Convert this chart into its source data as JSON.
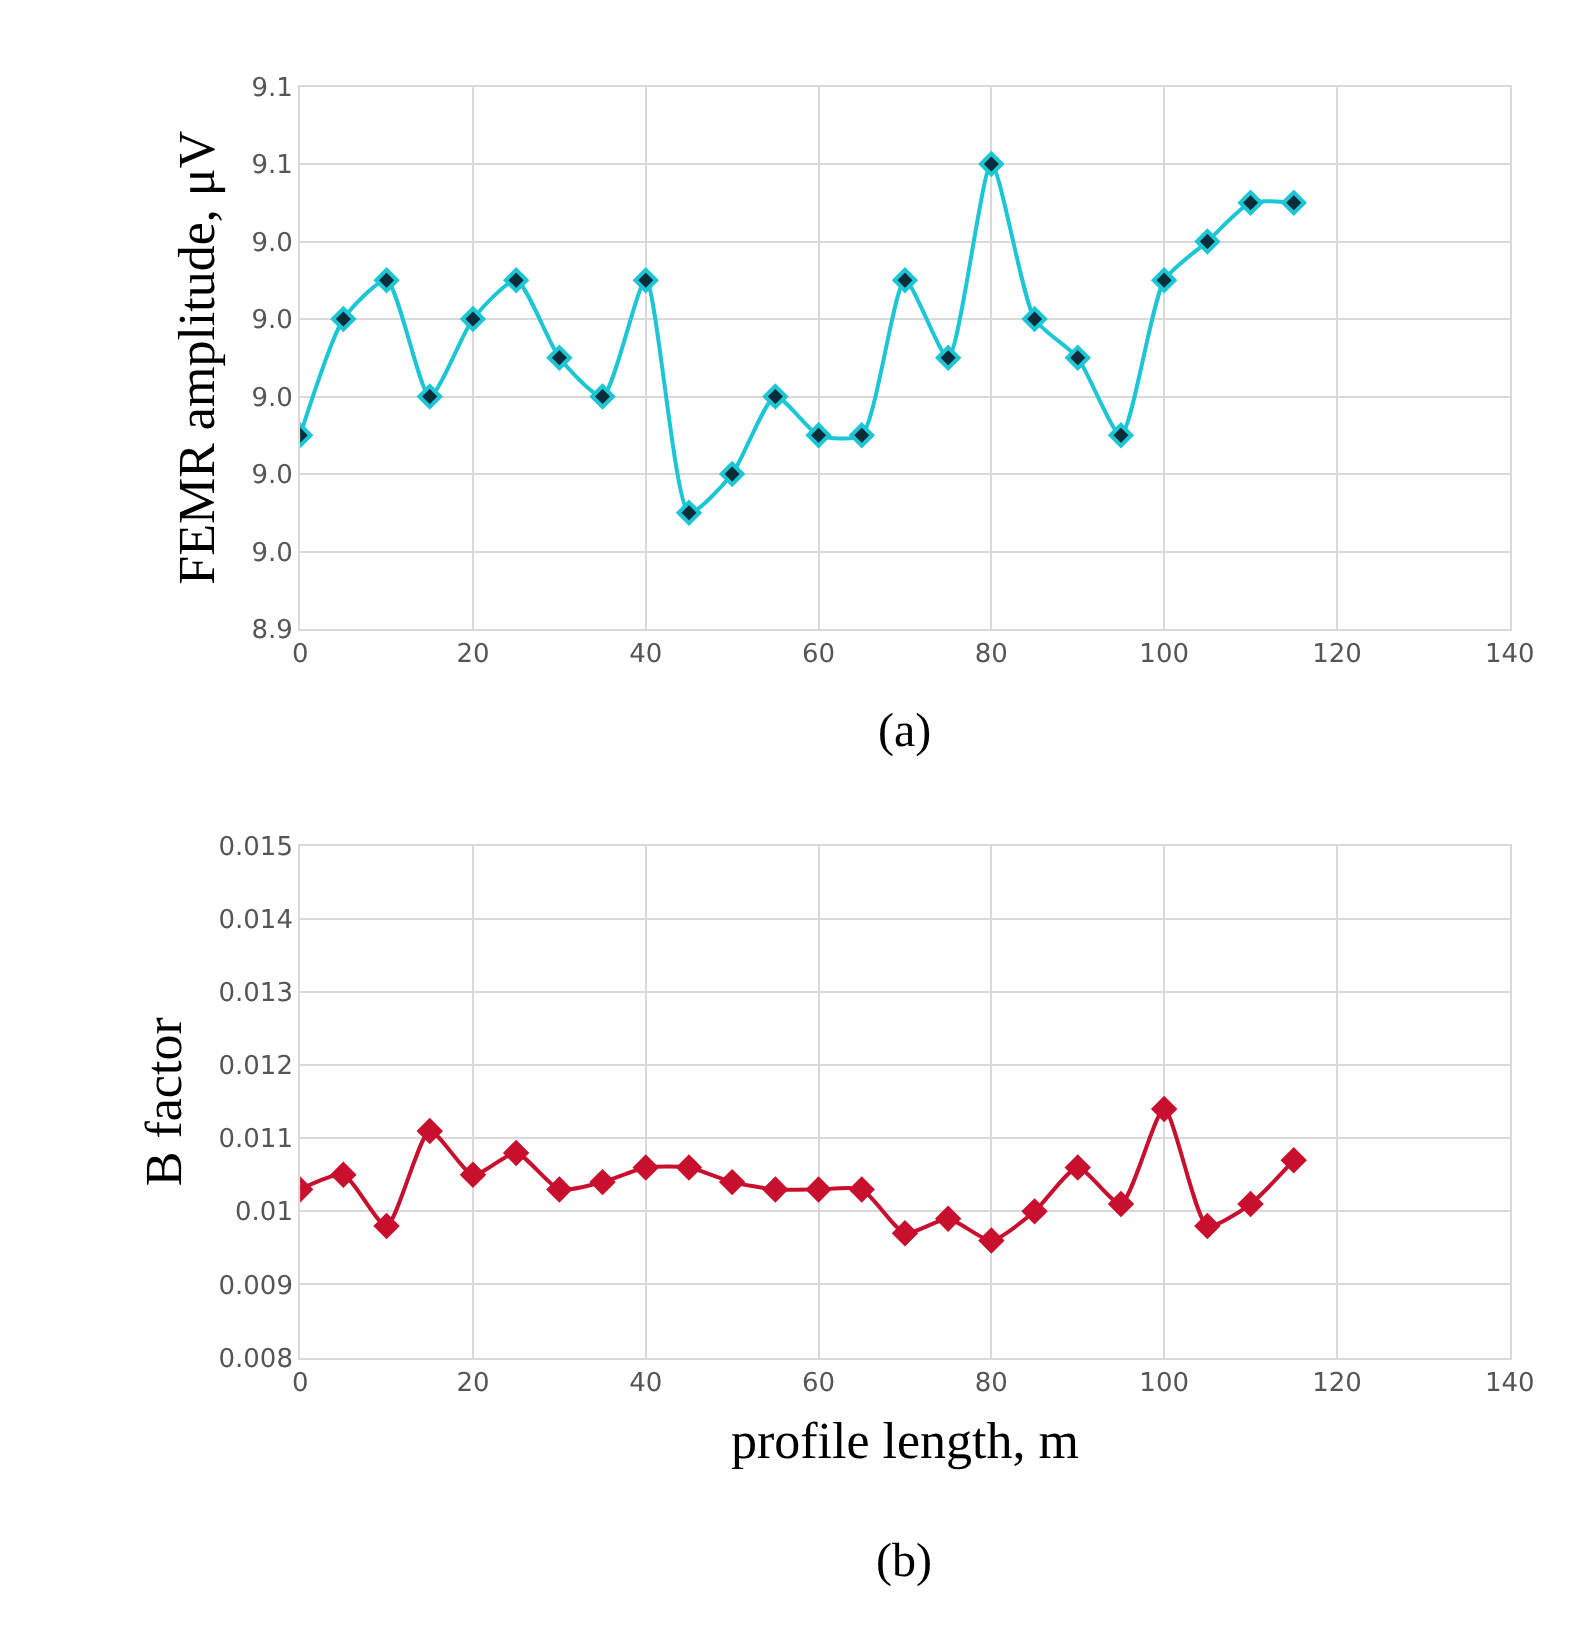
{
  "chart_data": [
    {
      "type": "line",
      "ylabel": "FEMR amplitude, μV",
      "annotations": [
        "(a)"
      ],
      "x": [
        0,
        5,
        10,
        15,
        20,
        25,
        30,
        35,
        40,
        45,
        50,
        55,
        60,
        65,
        70,
        75,
        80,
        85,
        90,
        95,
        100,
        105,
        110,
        115
      ],
      "series": [
        {
          "color": "#1cc6d4",
          "values": [
            8.99,
            9.02,
            9.03,
            9.0,
            9.02,
            9.03,
            9.01,
            9.0,
            9.03,
            8.97,
            8.98,
            9.0,
            8.99,
            8.99,
            9.03,
            9.01,
            9.06,
            9.02,
            9.01,
            8.99,
            9.03,
            9.04,
            9.05,
            9.05
          ]
        }
      ],
      "xlim": [
        0,
        140
      ],
      "xticks": [
        0,
        20,
        40,
        60,
        80,
        100,
        120,
        140
      ],
      "ylim": [
        8.94,
        9.08
      ],
      "yticks": [
        {
          "value": 8.94,
          "label": "8.9"
        },
        {
          "value": 8.96,
          "label": "9.0"
        },
        {
          "value": 8.98,
          "label": "9.0"
        },
        {
          "value": 9.0,
          "label": "9.0"
        },
        {
          "value": 9.02,
          "label": "9.0"
        },
        {
          "value": 9.04,
          "label": "9.0"
        },
        {
          "value": 9.06,
          "label": "9.1"
        },
        {
          "value": 9.08,
          "label": "9.1"
        }
      ],
      "grid": true,
      "marker": "diamond",
      "line_style": "solid"
    },
    {
      "type": "line",
      "xlabel": "profile length, m",
      "ylabel": "B factor",
      "annotations": [
        "(b)"
      ],
      "x": [
        0,
        5,
        10,
        15,
        20,
        25,
        30,
        35,
        40,
        45,
        50,
        55,
        60,
        65,
        70,
        75,
        80,
        85,
        90,
        95,
        100,
        105,
        110,
        115
      ],
      "series": [
        {
          "color": "#c8102e",
          "values": [
            0.0103,
            0.0105,
            0.0098,
            0.0111,
            0.0105,
            0.0108,
            0.0103,
            0.0104,
            0.0106,
            0.0106,
            0.0104,
            0.0103,
            0.0103,
            0.0103,
            0.0097,
            0.0099,
            0.0096,
            0.01,
            0.0106,
            0.0101,
            0.0114,
            0.0098,
            0.0101,
            0.0107
          ]
        }
      ],
      "xlim": [
        0,
        140
      ],
      "xticks": [
        0,
        20,
        40,
        60,
        80,
        100,
        120,
        140
      ],
      "ylim": [
        0.008,
        0.015
      ],
      "yticks": [
        0.008,
        0.009,
        {
          "value": 0.01,
          "label": "0.01"
        },
        0.011,
        0.012,
        0.013,
        0.014,
        0.015
      ],
      "grid": true,
      "marker": "diamond",
      "line_style": "solid"
    }
  ]
}
